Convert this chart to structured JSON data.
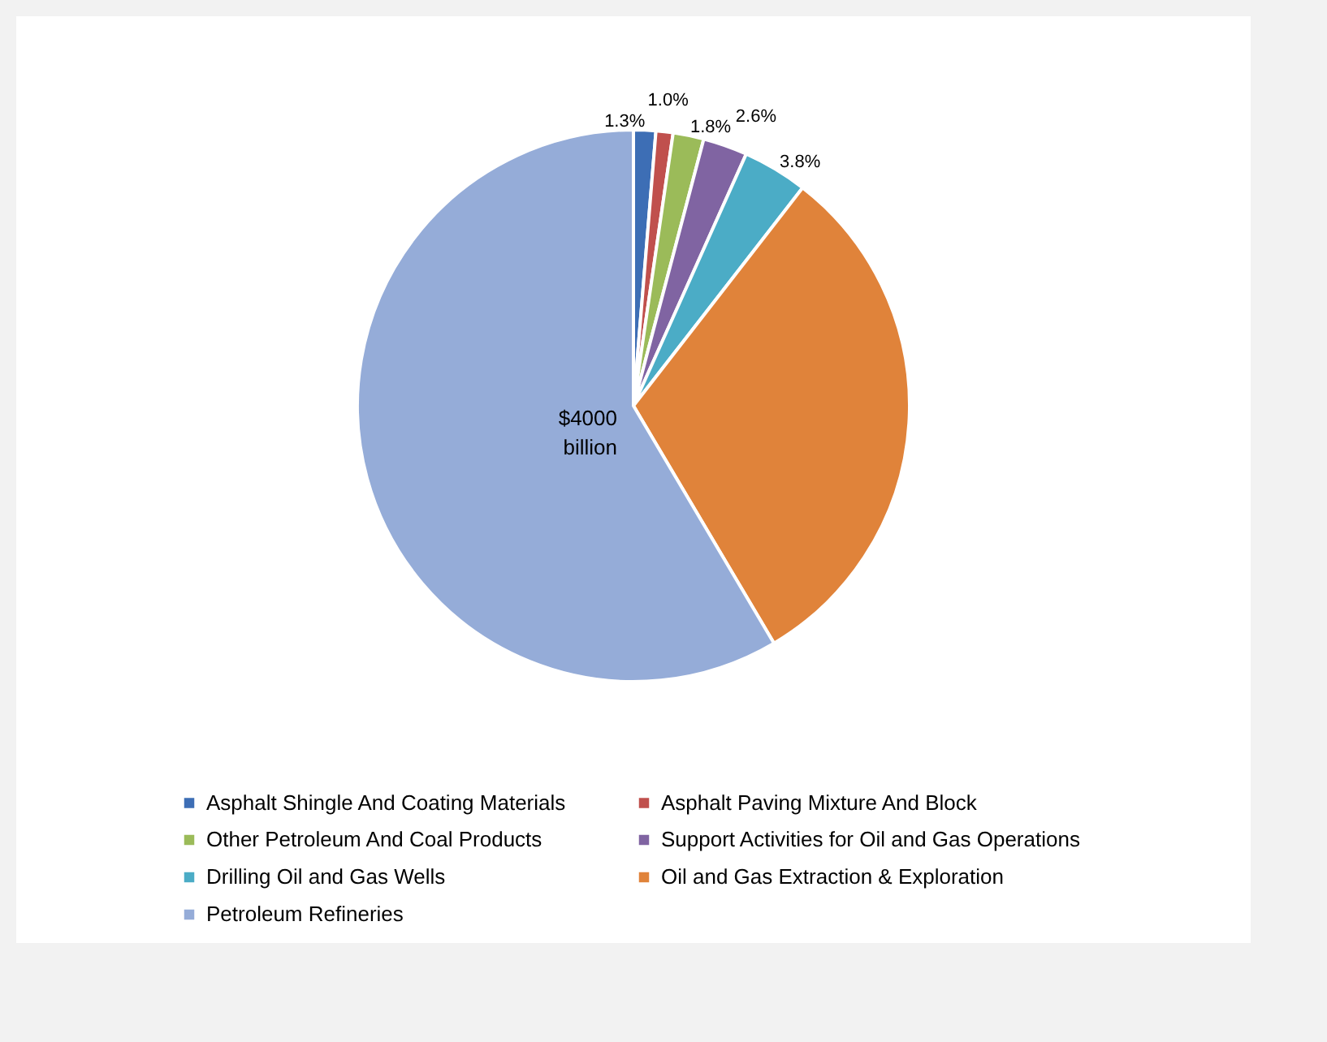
{
  "chart_data": {
    "type": "pie",
    "categories": [
      "Asphalt Shingle And Coating Materials",
      "Asphalt Paving Mixture And Block",
      "Other Petroleum And Coal Products",
      "Support Activities for Oil and Gas Operations",
      "Drilling Oil and Gas Wells",
      "Oil and Gas Extraction & Exploration",
      "Petroleum Refineries"
    ],
    "values": [
      1.3,
      1.0,
      1.8,
      2.6,
      3.8,
      31,
      58.5
    ],
    "value_labels": [
      "1.3%",
      "1.0%",
      "1.8%",
      "2.6%",
      "3.8%",
      null,
      null
    ],
    "colors": [
      "#3d6eb5",
      "#c0504d",
      "#9bbb59",
      "#8064a2",
      "#4bacc6",
      "#e0833a",
      "#95acd8"
    ],
    "annotations": [
      "$4000 billion"
    ],
    "legend": "bottom"
  }
}
